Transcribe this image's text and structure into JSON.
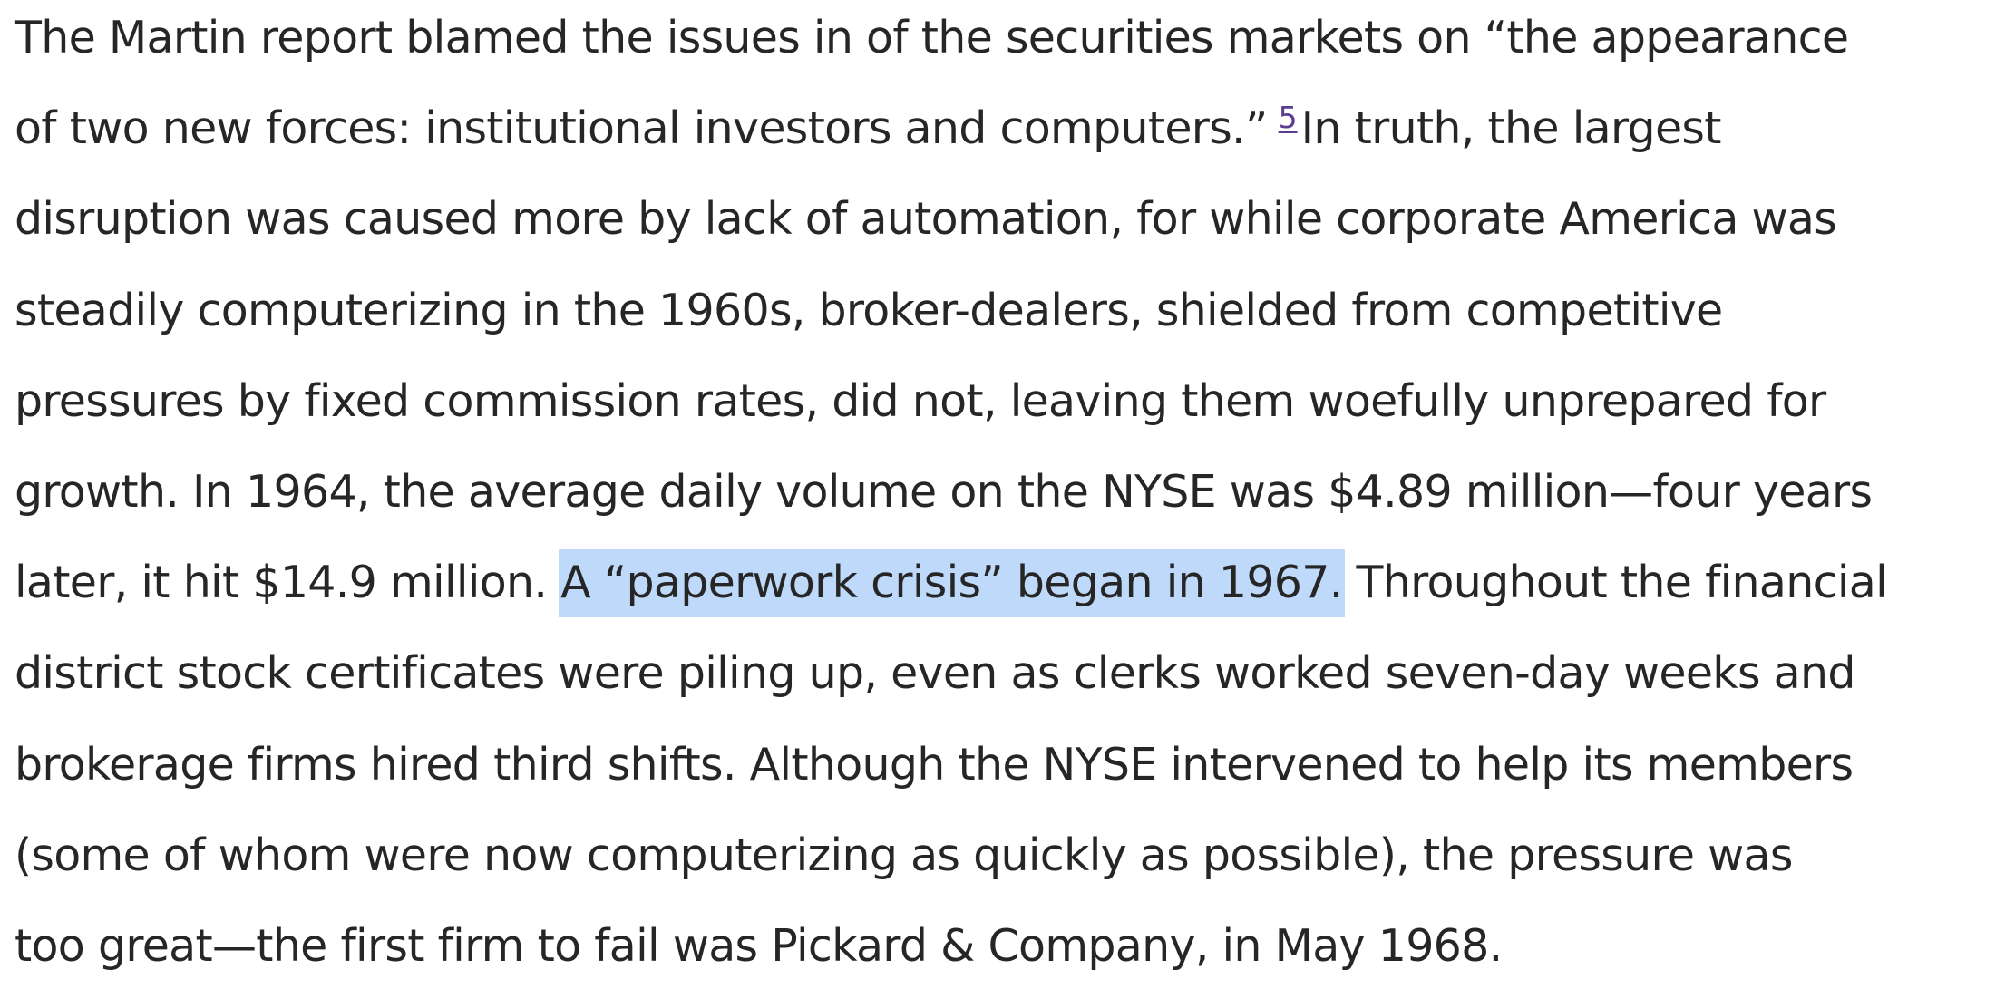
{
  "paragraph": {
    "line1": "The Martin report blamed the issues in of the securities markets on “the appearance",
    "line2_before": "of two new forces: institutional investors and computers.”",
    "footnote_ref": "5",
    "line2_after": "In truth, the largest",
    "line3": "disruption was caused more by lack of automation, for while corporate America was",
    "line4": "steadily computerizing in the 1960s, broker-dealers, shielded from competitive",
    "line5": "pressures by fixed commission rates, did not, leaving them woefully unprepared for",
    "line6": "growth. In 1964, the average daily volume on the NYSE was $4.89 million—four years",
    "line7_before": "later, it hit $14.9 million.",
    "line7_highlight": "A “paperwork crisis” began in 1967.",
    "line7_after": "Throughout the financial",
    "line8": "district stock certificates were piling up, even as clerks worked seven-day weeks and",
    "line9": "brokerage firms hired third shifts. Although the NYSE intervened to help its members",
    "line10": "(some of whom were now computerizing as quickly as possible), the pressure was",
    "line11": "too great—the first firm to fail was Pickard & Company, in May 1968."
  },
  "colors": {
    "text": "#262626",
    "highlight": "#bfd9fb",
    "footnote_link": "#5a3d8f"
  }
}
